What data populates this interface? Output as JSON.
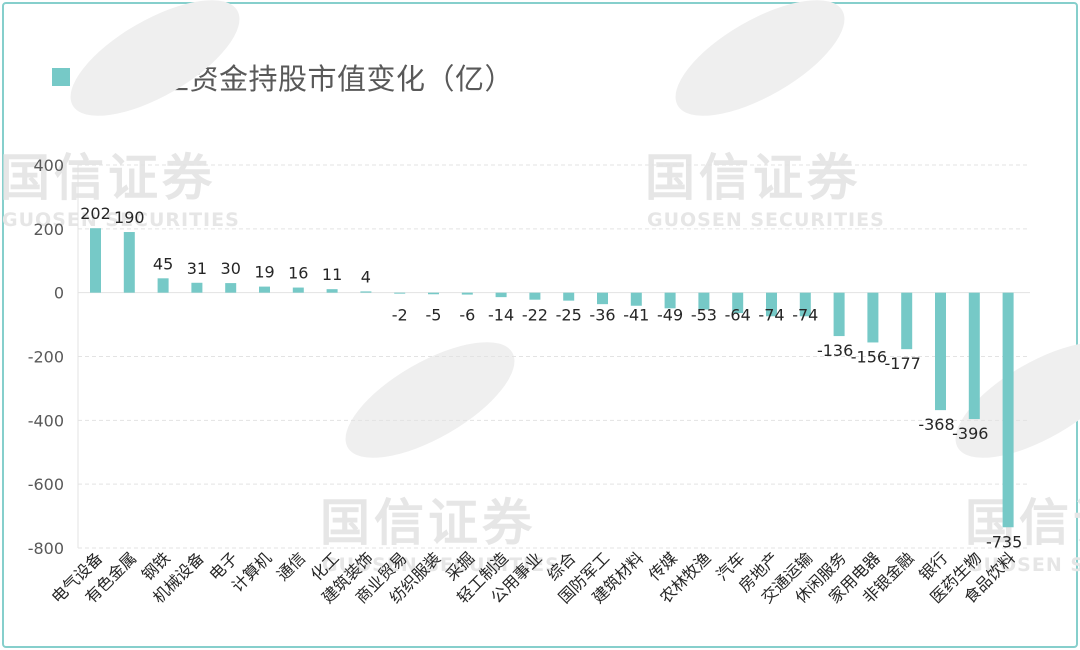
{
  "chart_data": {
    "type": "bar",
    "title": "7月北上资金持股市值变化（亿）",
    "legend": "top-left",
    "ylim": [
      -800,
      400
    ],
    "yticks": [
      400,
      200,
      0,
      -200,
      -400,
      -600,
      -800
    ],
    "grid": true,
    "color": "#76c9c7",
    "categories": [
      "电气设备",
      "有色金属",
      "钢铁",
      "机械设备",
      "电子",
      "计算机",
      "通信",
      "化工",
      "建筑装饰",
      "商业贸易",
      "纺织服装",
      "采掘",
      "轻工制造",
      "公用事业",
      "综合",
      "国防军工",
      "建筑材料",
      "传媒",
      "农林牧渔",
      "汽车",
      "房地产",
      "交通运输",
      "休闲服务",
      "家用电器",
      "非银金融",
      "银行",
      "医药生物",
      "食品饮料"
    ],
    "values": [
      202,
      190,
      45,
      31,
      30,
      19,
      16,
      11,
      4,
      -2,
      -5,
      -6,
      -14,
      -22,
      -25,
      -36,
      -41,
      -49,
      -53,
      -64,
      -74,
      -74,
      -136,
      -156,
      -177,
      -368,
      -396,
      -735
    ],
    "value_labels": [
      "202",
      "190",
      "45",
      "31",
      "30",
      "19",
      "16",
      "11",
      "4",
      "-2",
      "-5",
      "-6",
      "-14",
      "-22",
      "-25",
      "-36",
      "-41",
      "-49",
      "-53",
      "-64",
      "-74",
      "-74",
      "-136",
      "-156",
      "-177",
      "-368",
      "-396",
      "-735"
    ]
  },
  "watermark": {
    "name": "国信证券",
    "sub": "GUOSEN SECURITIES"
  }
}
